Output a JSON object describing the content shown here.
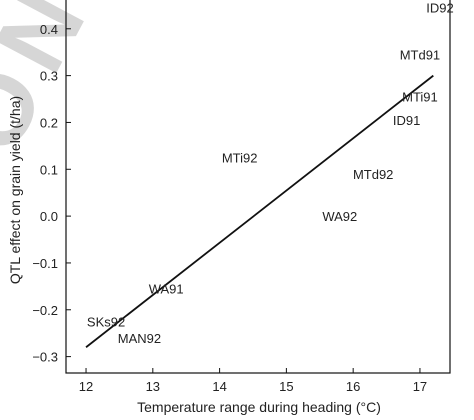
{
  "chart_data": {
    "type": "scatter",
    "title": "",
    "xlabel": "Temperature range during heading (°C)",
    "ylabel": "QTL effect on grain yield (t/ha)",
    "xlim": [
      11.7,
      17.45
    ],
    "ylim": [
      -0.335,
      0.47
    ],
    "xticks": [
      12,
      13,
      14,
      15,
      16,
      17
    ],
    "yticks": [
      -0.3,
      -0.2,
      -0.1,
      0.0,
      0.1,
      0.2,
      0.3,
      0.4
    ],
    "ytick_labels": [
      "−0.3",
      "−0.2",
      "−0.1",
      "0.0",
      "0.1",
      "0.2",
      "0.3",
      "0.4"
    ],
    "grid": false,
    "points": [
      {
        "label": "ID92",
        "x": 17.3,
        "y": 0.445
      },
      {
        "label": "MTd91",
        "x": 17.0,
        "y": 0.345
      },
      {
        "label": "MTi91",
        "x": 17.0,
        "y": 0.255
      },
      {
        "label": "ID91",
        "x": 16.8,
        "y": 0.205
      },
      {
        "label": "MTi92",
        "x": 14.3,
        "y": 0.125
      },
      {
        "label": "MTd92",
        "x": 16.3,
        "y": 0.09
      },
      {
        "label": "WA92",
        "x": 15.8,
        "y": 0.0
      },
      {
        "label": "WA91",
        "x": 13.2,
        "y": -0.155
      },
      {
        "label": "SKs92",
        "x": 12.3,
        "y": -0.225
      },
      {
        "label": "MAN92",
        "x": 12.8,
        "y": -0.26
      }
    ],
    "regression_line": {
      "x": [
        12.0,
        17.2
      ],
      "y": [
        -0.28,
        0.3
      ]
    },
    "watermark": "ONLY"
  }
}
